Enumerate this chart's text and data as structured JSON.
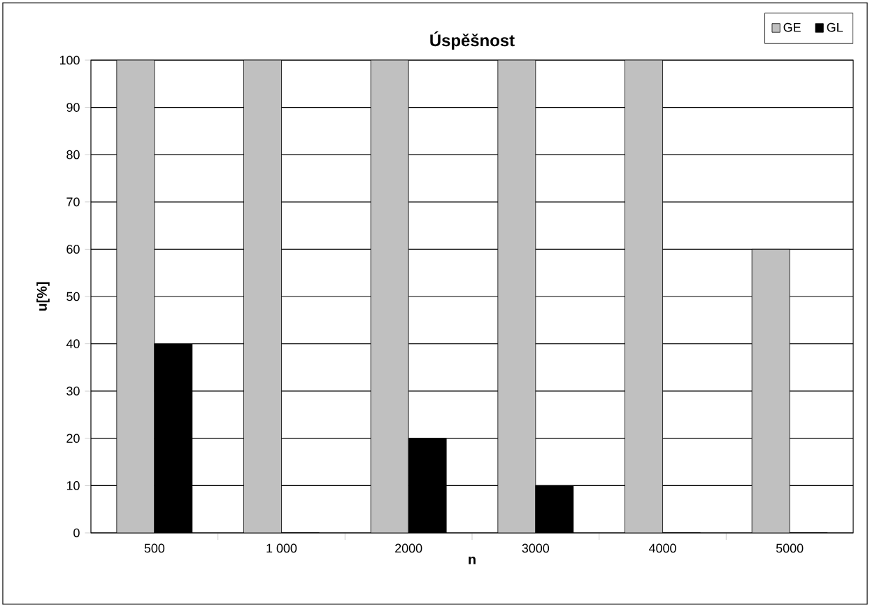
{
  "chart_data": {
    "type": "bar",
    "title": "Úspěšnost",
    "xlabel": "n",
    "ylabel": "u[%]",
    "categories": [
      "500",
      "1 000",
      "2000",
      "3000",
      "4000",
      "5000"
    ],
    "series": [
      {
        "name": "GE",
        "color": "#c0c0c0",
        "values": [
          100,
          100,
          100,
          100,
          100,
          60
        ]
      },
      {
        "name": "GL",
        "color": "#000000",
        "values": [
          40,
          0,
          20,
          10,
          0,
          0
        ]
      }
    ],
    "ylim": [
      0,
      100
    ],
    "yticks": [
      0,
      10,
      20,
      30,
      40,
      50,
      60,
      70,
      80,
      90,
      100
    ],
    "grid": "y",
    "legend": "top right"
  }
}
